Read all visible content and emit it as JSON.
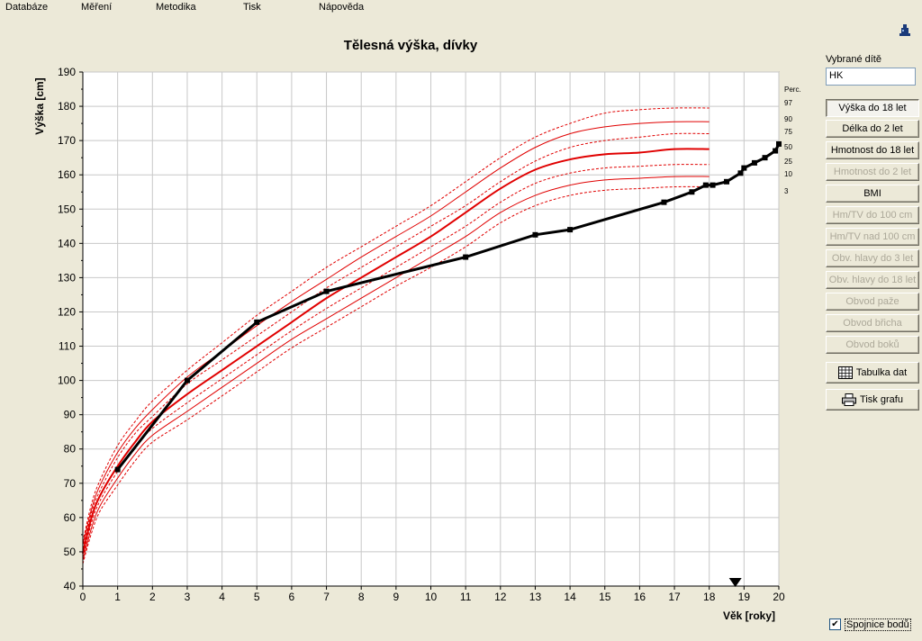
{
  "menu": [
    "Databáze",
    "Měření",
    "Metodika",
    "Tisk",
    "Nápověda"
  ],
  "chart_data": {
    "type": "line",
    "title": "Tělesná výška, dívky",
    "xlabel": "Věk [roky]",
    "ylabel": "Výška [cm]",
    "xlim": [
      0,
      20
    ],
    "ylim": [
      40,
      190
    ],
    "xticks": [
      0,
      1,
      2,
      3,
      4,
      5,
      6,
      7,
      8,
      9,
      10,
      11,
      12,
      13,
      14,
      15,
      16,
      17,
      18,
      19,
      20
    ],
    "yticks": [
      40,
      50,
      60,
      70,
      80,
      90,
      100,
      110,
      120,
      130,
      140,
      150,
      160,
      170,
      180,
      190
    ],
    "grid": true,
    "percentile_header": "Perc.",
    "percentile_labels": [
      "97",
      "90",
      "75",
      "50",
      "25",
      "10",
      "3"
    ],
    "percentile_x": [
      0,
      0.25,
      0.5,
      1,
      1.5,
      2,
      3,
      4,
      5,
      6,
      7,
      8,
      9,
      10,
      11,
      12,
      13,
      14,
      15,
      16,
      17,
      18
    ],
    "percentiles": [
      {
        "name": "97",
        "style": "dashed",
        "values": [
          53,
          64,
          71,
          81,
          88,
          94,
          103,
          111,
          119,
          126,
          133,
          139,
          145,
          151,
          158,
          165,
          171,
          175,
          178,
          179,
          179.5,
          179.5
        ]
      },
      {
        "name": "90",
        "style": "solid",
        "values": [
          52,
          62.5,
          69.5,
          79,
          86,
          91.5,
          101,
          108.5,
          116,
          123,
          129.5,
          136,
          142,
          148,
          155,
          162,
          168,
          172,
          174,
          175,
          175.5,
          175.5
        ]
      },
      {
        "name": "75",
        "style": "dashed",
        "values": [
          51,
          61.5,
          68,
          77.5,
          84.5,
          89.5,
          99,
          106,
          113,
          120,
          127,
          133,
          139,
          145,
          151,
          158,
          164,
          168,
          170,
          171,
          172,
          172
        ]
      },
      {
        "name": "50",
        "style": "thick",
        "values": [
          49.5,
          60,
          66.5,
          75,
          82,
          88,
          96,
          103,
          110,
          117,
          124,
          130,
          136,
          142,
          149,
          156,
          161.5,
          164.5,
          166,
          166.5,
          167.5,
          167.5
        ]
      },
      {
        "name": "25",
        "style": "dashed",
        "values": [
          48.5,
          58.5,
          65,
          73.5,
          80.5,
          86,
          93.5,
          100.5,
          107.5,
          114.5,
          121,
          127,
          133,
          139,
          145,
          152,
          157.5,
          160.5,
          162,
          162.5,
          163,
          163
        ]
      },
      {
        "name": "10",
        "style": "solid",
        "values": [
          47.5,
          57,
          63.5,
          71.5,
          78.5,
          84,
          91,
          98,
          105,
          112,
          118,
          124,
          130,
          136,
          142,
          149,
          154,
          157,
          158.5,
          159,
          159.5,
          159.5
        ]
      },
      {
        "name": "3",
        "style": "dashed",
        "values": [
          46.5,
          55.5,
          62,
          69.5,
          76.5,
          82,
          88.5,
          95.5,
          102.5,
          109.5,
          115.5,
          121.5,
          127.5,
          133,
          139,
          146,
          151,
          154,
          155.5,
          156,
          156.5,
          156.5
        ]
      }
    ],
    "measurement_series": {
      "x": [
        1,
        3,
        5,
        7,
        11,
        13,
        14,
        16.7,
        17.5,
        17.9,
        18.1,
        18.5,
        18.9,
        19,
        19.3,
        19.6,
        19.9,
        20
      ],
      "values": [
        74,
        100,
        117,
        126,
        136,
        142.5,
        144,
        152,
        155,
        157,
        157,
        158,
        160.5,
        162,
        163.5,
        165,
        167,
        169
      ]
    },
    "current_age_marker": 18.75,
    "colors": {
      "percentile": "#e00000",
      "measurement": "#000000",
      "grid": "#c8c8c8"
    }
  },
  "panel": {
    "child_label": "Vybrané dítě",
    "child_value": "HK",
    "buttons": [
      {
        "label": "Výška do 18 let",
        "enabled": true,
        "pressed": true
      },
      {
        "label": "Délka do 2 let",
        "enabled": true
      },
      {
        "label": "Hmotnost do 18 let",
        "enabled": true
      },
      {
        "label": "Hmotnost do 2 let",
        "enabled": false
      },
      {
        "label": "BMI",
        "enabled": true
      },
      {
        "label": "Hm/TV do 100 cm",
        "enabled": false
      },
      {
        "label": "Hm/TV nad 100 cm",
        "enabled": false
      },
      {
        "label": "Obv. hlavy do 3 let",
        "enabled": false
      },
      {
        "label": "Obv. hlavy do 18 let",
        "enabled": false
      },
      {
        "label": "Obvod paže",
        "enabled": false
      },
      {
        "label": "Obvod břicha",
        "enabled": false
      },
      {
        "label": "Obvod boků",
        "enabled": false
      }
    ],
    "table_button": "Tabulka dat",
    "print_button": "Tisk grafu",
    "checkbox_label": "Spojnice bodů",
    "checkbox_checked": true,
    "icons": {
      "top_right": "printer-person-icon",
      "table": "table-grid-icon",
      "print": "printer-icon"
    }
  }
}
